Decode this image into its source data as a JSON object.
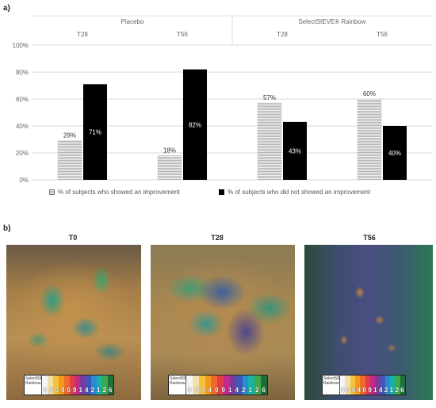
{
  "panel_a_label": "a)",
  "panel_b_label": "b)",
  "chart_data": {
    "type": "bar",
    "groups": [
      "Placebo",
      "SelectSIEVE® Rainbow"
    ],
    "categories": [
      "T28",
      "T56",
      "T28",
      "T56"
    ],
    "series": [
      {
        "name": "% of subjects who showed an improvement",
        "values": [
          29,
          18,
          57,
          60
        ],
        "labels": [
          "29%",
          "18%",
          "57%",
          "60%"
        ],
        "color": "#d9d9d9"
      },
      {
        "name": "% of subjects who did not showed an improvement",
        "values": [
          71,
          82,
          43,
          40
        ],
        "labels": [
          "71%",
          "82%",
          "43%",
          "40%"
        ],
        "color": "#000000"
      }
    ],
    "y_ticks": [
      "0%",
      "20%",
      "40%",
      "60%",
      "80%",
      "100%"
    ],
    "ylim": [
      0,
      100
    ],
    "grid": true,
    "legend_position": "bottom"
  },
  "photos": {
    "titles": [
      "T0",
      "T28",
      "T56"
    ],
    "scale_logo": "SelectSIEVE Rainbow",
    "scale_numbers": [
      "0",
      "5",
      "0",
      "4",
      "0",
      "9",
      "1",
      "4",
      "2",
      "1",
      "2",
      "6"
    ],
    "scale_colors": [
      "#f5f5f5",
      "#f0e0b0",
      "#f6c23a",
      "#f39a1f",
      "#ee6b2a",
      "#e23b4a",
      "#c2298a",
      "#7a3a9e",
      "#3f58b8",
      "#2a8bd0",
      "#17b2a6",
      "#3fa84a",
      "#1d6f3b"
    ]
  }
}
